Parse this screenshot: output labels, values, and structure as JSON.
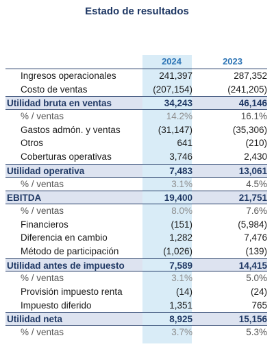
{
  "title": "Estado de resultados",
  "headers": {
    "y2024": "2024",
    "y2023": "2023"
  },
  "rows": [
    {
      "label": "Ingresos operacionales",
      "v2024": "241,397",
      "v2023": "287,352",
      "kind": "normal"
    },
    {
      "label": "Costo de ventas",
      "v2024": "(207,154)",
      "v2023": "(241,205)",
      "kind": "normal"
    },
    {
      "label": "Utilidad bruta en ventas",
      "v2024": "34,243",
      "v2023": "46,146",
      "kind": "subtotal"
    },
    {
      "label": "% / ventas",
      "v2024": "14.2%",
      "v2023": "16.1%",
      "kind": "pct"
    },
    {
      "label": "Gastos admón. y ventas",
      "v2024": "(31,147)",
      "v2023": "(35,306)",
      "kind": "normal"
    },
    {
      "label": "Otros",
      "v2024": "641",
      "v2023": "(210)",
      "kind": "normal"
    },
    {
      "label": "Coberturas operativas",
      "v2024": "3,746",
      "v2023": "2,430",
      "kind": "normal"
    },
    {
      "label": "Utilidad operativa",
      "v2024": "7,483",
      "v2023": "13,061",
      "kind": "subtotal"
    },
    {
      "label": "% / ventas",
      "v2024": "3.1%",
      "v2023": "4.5%",
      "kind": "pct"
    },
    {
      "label": "EBITDA",
      "v2024": "19,400",
      "v2023": "21,751",
      "kind": "subtotal"
    },
    {
      "label": "% / ventas",
      "v2024": "8.0%",
      "v2023": "7.6%",
      "kind": "pct"
    },
    {
      "label": "Financieros",
      "v2024": "(151)",
      "v2023": "(5,984)",
      "kind": "normal"
    },
    {
      "label": "Diferencia en cambio",
      "v2024": "1,282",
      "v2023": "7,476",
      "kind": "normal"
    },
    {
      "label": "Método de participación",
      "v2024": "(1,026)",
      "v2023": "(139)",
      "kind": "normal"
    },
    {
      "label": "Utilidad antes de impuesto",
      "v2024": "7,589",
      "v2023": "14,415",
      "kind": "subtotal"
    },
    {
      "label": "% / ventas",
      "v2024": "3.1%",
      "v2023": "5.0%",
      "kind": "pct"
    },
    {
      "label": "Provisión impuesto renta",
      "v2024": "(14)",
      "v2023": "(24)",
      "kind": "normal"
    },
    {
      "label": "Impuesto diferido",
      "v2024": "1,351",
      "v2023": "765",
      "kind": "normal"
    },
    {
      "label": "Utilidad neta",
      "v2024": "8,925",
      "v2023": "15,156",
      "kind": "subtotal"
    },
    {
      "label": "% / ventas",
      "v2024": "3.7%",
      "v2023": "5.3%",
      "kind": "pct"
    }
  ]
}
